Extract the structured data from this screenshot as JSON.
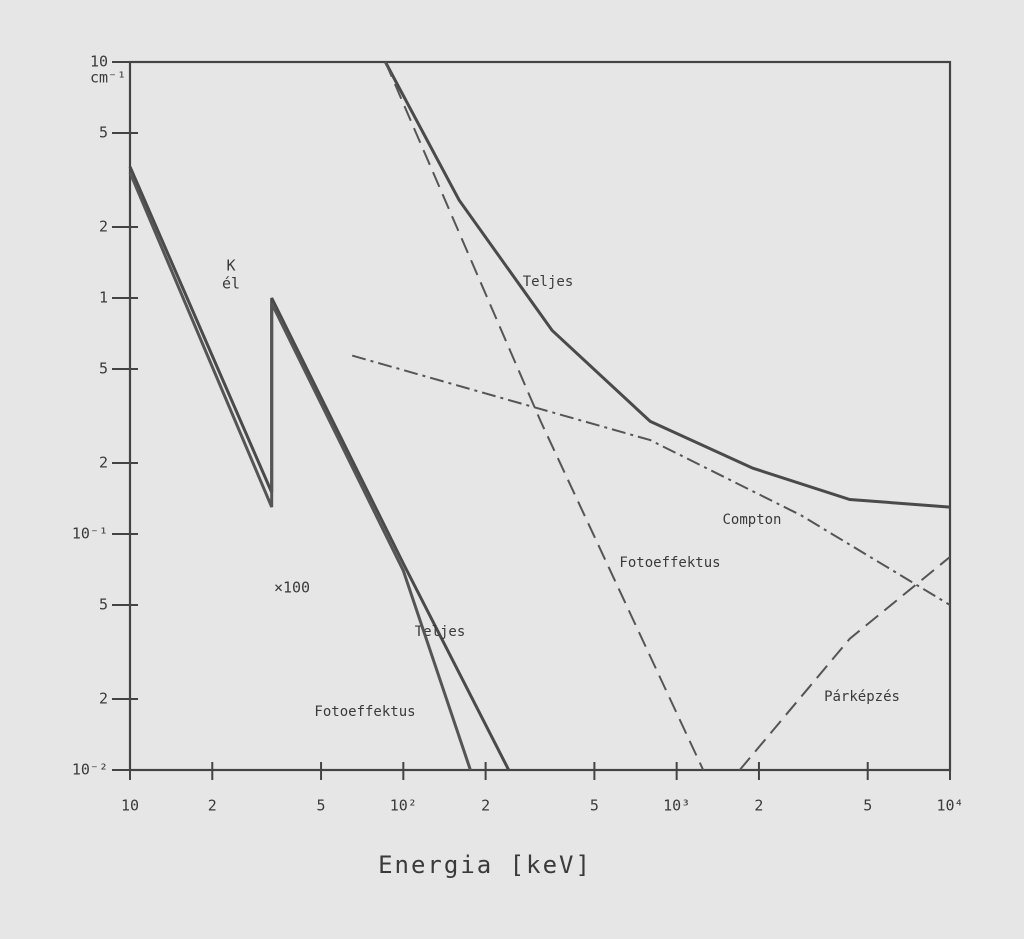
{
  "chart_data": {
    "type": "line",
    "ylabel": "cm⁻¹",
    "xlabel": "Energia [keV]",
    "log_x": true,
    "log_y": true,
    "xlim": [
      10,
      10000
    ],
    "ylim": [
      0.01,
      10
    ],
    "xticks": [
      10,
      {
        "value": 20,
        "label": "2"
      },
      {
        "value": 50,
        "label": "5"
      },
      {
        "value": 100,
        "label": "10²"
      },
      {
        "value": 200,
        "label": "2"
      },
      {
        "value": 500,
        "label": "5"
      },
      {
        "value": 1000,
        "label": "10³"
      },
      {
        "value": 2000,
        "label": "2"
      },
      {
        "value": 5000,
        "label": "5"
      },
      {
        "value": 10000,
        "label": "10⁴"
      }
    ],
    "yticks": [
      10,
      5,
      2,
      1,
      {
        "value": 0.5,
        "label": "5"
      },
      {
        "value": 0.2,
        "label": "2"
      },
      {
        "value": 0.1,
        "label": "10⁻¹"
      },
      {
        "value": 0.05,
        "label": "5"
      },
      {
        "value": 0.02,
        "label": "2"
      },
      {
        "value": 0.01,
        "label": "10⁻²"
      }
    ],
    "annotations": [
      "K",
      "él",
      "×100"
    ],
    "series": [
      {
        "name": "Teljes",
        "color": "#4a4a4a",
        "style": "solid",
        "x": [
          10,
          33,
          33,
          100,
          243
        ],
        "values": [
          3.6,
          0.15,
          1.0,
          0.075,
          0.01
        ]
      },
      {
        "name": "Fotoeffektus",
        "color": "#555555",
        "style": "solid",
        "x": [
          10,
          33,
          33,
          100,
          176
        ],
        "values": [
          3.4,
          0.13,
          0.95,
          0.07,
          0.01
        ]
      },
      {
        "name": "Teljes",
        "color": "#4a4a4a",
        "style": "solid",
        "x": [
          86,
          160,
          350,
          800,
          1900,
          4300,
          10000
        ],
        "values": [
          10,
          2.6,
          0.73,
          0.3,
          0.19,
          0.14,
          0.13
        ]
      },
      {
        "name": "Fotoeffektus",
        "color": "#555555",
        "style": "dashed",
        "x": [
          86,
          318,
          1250
        ],
        "values": [
          10,
          0.3,
          0.01
        ]
      },
      {
        "name": "Compton",
        "color": "#555555",
        "style": "dashdot",
        "x": [
          65,
          800,
          2850,
          10000
        ],
        "values": [
          0.57,
          0.25,
          0.12,
          0.05
        ]
      },
      {
        "name": "Párképzés",
        "color": "#555555",
        "style": "dashed",
        "x": [
          1700,
          4300,
          10000
        ],
        "values": [
          0.01,
          0.036,
          0.08
        ]
      }
    ]
  }
}
